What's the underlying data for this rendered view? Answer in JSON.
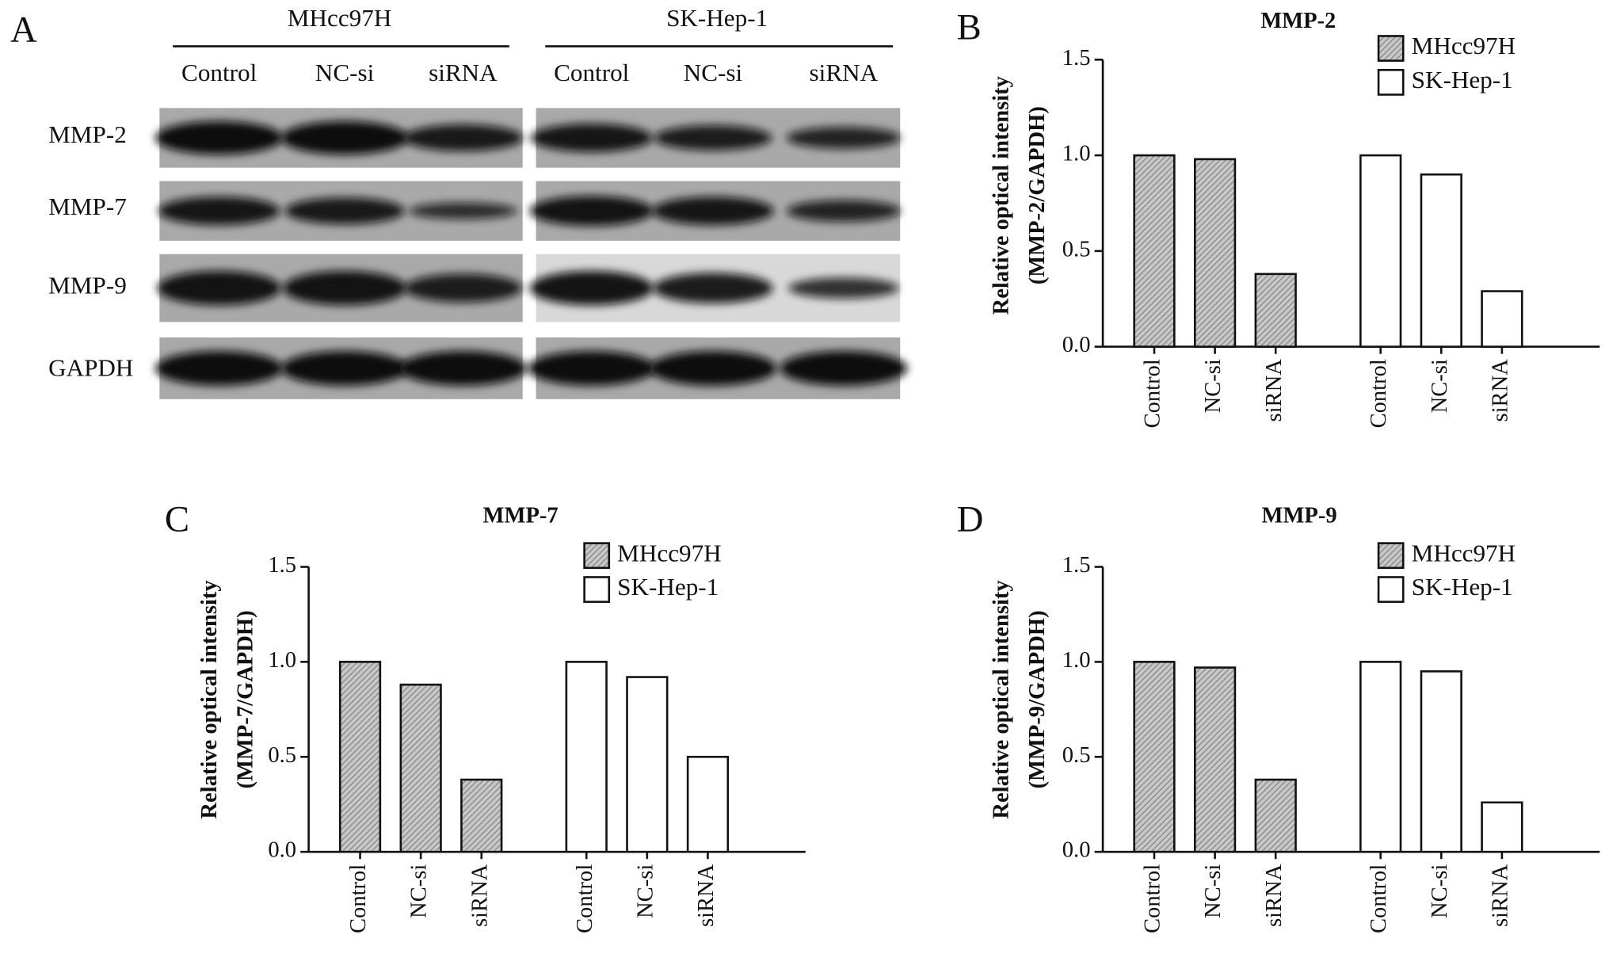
{
  "blot": {
    "panel_label": "A",
    "groups": [
      {
        "name": "MHcc97H",
        "lanes": [
          "Control",
          "NC-si",
          "siRNA"
        ]
      },
      {
        "name": "SK-Hep-1",
        "lanes": [
          "Control",
          "NC-si",
          "siRNA"
        ]
      }
    ],
    "rows": [
      "MMP-2",
      "MMP-7",
      "MMP-9",
      "GAPDH"
    ]
  },
  "chart_data": [
    {
      "type": "bar",
      "panel_label": "B",
      "title": "MMP-2",
      "ylabel": [
        "Relative optical intensity",
        "(MMP-2/GAPDH)"
      ],
      "categories": [
        "Control",
        "NC-si",
        "siRNA",
        "Control",
        "NC-si",
        "siRNA"
      ],
      "series": [
        {
          "name": "MHcc97H",
          "color": "#8c8c8c",
          "hatch": true,
          "values": [
            1.0,
            0.98,
            0.38,
            null,
            null,
            null
          ]
        },
        {
          "name": "SK-Hep-1",
          "color": "#ffffff",
          "hatch": false,
          "values": [
            null,
            null,
            null,
            1.0,
            0.9,
            0.29
          ]
        }
      ],
      "ylim": [
        0,
        1.5
      ],
      "yticks": [
        {
          "value": 0,
          "label": "0.0"
        },
        {
          "value": 0.5,
          "label": "0.5"
        },
        {
          "value": 1,
          "label": "1.0"
        },
        {
          "value": 1.5,
          "label": "1.5"
        }
      ],
      "legend": "upper right"
    },
    {
      "type": "bar",
      "panel_label": "C",
      "title": "MMP-7",
      "ylabel": [
        "Relative optical intensity",
        "(MMP-7/GAPDH)"
      ],
      "categories": [
        "Control",
        "NC-si",
        "siRNA",
        "Control",
        "NC-si",
        "siRNA"
      ],
      "series": [
        {
          "name": "MHcc97H",
          "color": "#8c8c8c",
          "hatch": true,
          "values": [
            1.0,
            0.88,
            0.38,
            null,
            null,
            null
          ]
        },
        {
          "name": "SK-Hep-1",
          "color": "#ffffff",
          "hatch": false,
          "values": [
            null,
            null,
            null,
            1.0,
            0.92,
            0.5
          ]
        }
      ],
      "ylim": [
        0,
        1.5
      ],
      "yticks": [
        {
          "value": 0,
          "label": "0.0"
        },
        {
          "value": 0.5,
          "label": "0.5"
        },
        {
          "value": 1,
          "label": "1.0"
        },
        {
          "value": 1.5,
          "label": "1.5"
        }
      ],
      "legend": "upper right"
    },
    {
      "type": "bar",
      "panel_label": "D",
      "title": "MMP-9",
      "ylabel": [
        "Relative optical intensity",
        "(MMP-9/GAPDH)"
      ],
      "categories": [
        "Control",
        "NC-si",
        "siRNA",
        "Control",
        "NC-si",
        "siRNA"
      ],
      "series": [
        {
          "name": "MHcc97H",
          "color": "#8c8c8c",
          "hatch": true,
          "values": [
            1.0,
            0.97,
            0.38,
            null,
            null,
            null
          ]
        },
        {
          "name": "SK-Hep-1",
          "color": "#ffffff",
          "hatch": false,
          "values": [
            null,
            null,
            null,
            1.0,
            0.95,
            0.26
          ]
        }
      ],
      "ylim": [
        0,
        1.5
      ],
      "yticks": [
        {
          "value": 0,
          "label": "0.0"
        },
        {
          "value": 0.5,
          "label": "0.5"
        },
        {
          "value": 1,
          "label": "1.0"
        },
        {
          "value": 1.5,
          "label": "1.5"
        }
      ],
      "legend": "upper right"
    }
  ]
}
